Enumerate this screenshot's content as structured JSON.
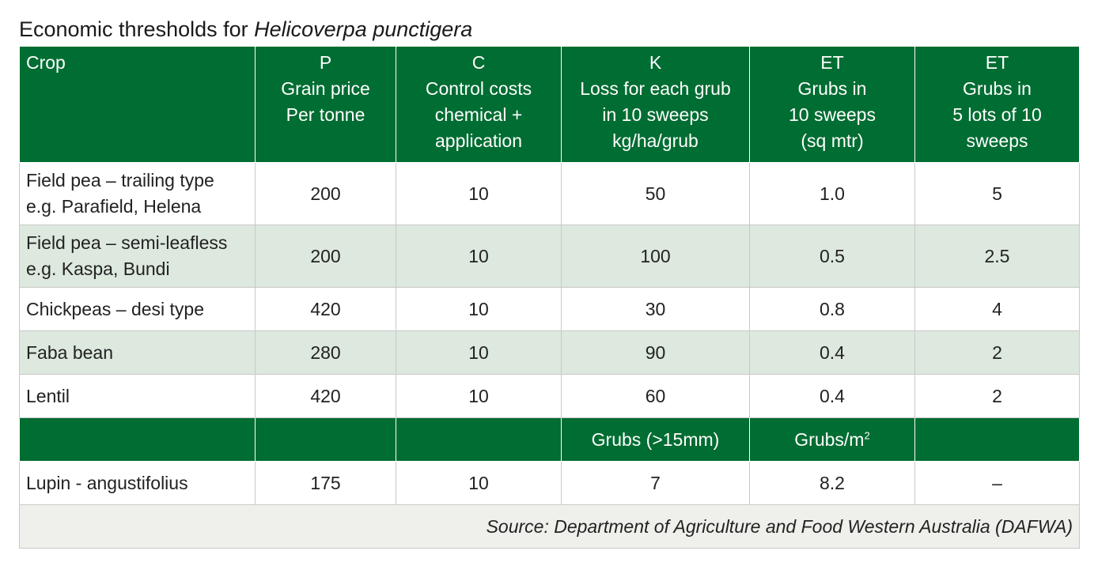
{
  "title": {
    "prefix": "Economic thresholds for ",
    "species": "Helicoverpa punctigera"
  },
  "headers": [
    {
      "lines": [
        "Crop"
      ]
    },
    {
      "lines": [
        "P",
        "Grain price",
        "Per tonne"
      ]
    },
    {
      "lines": [
        "C",
        "Control costs",
        "chemical +",
        "application"
      ]
    },
    {
      "lines": [
        "K",
        "Loss for each grub",
        "in 10 sweeps",
        "kg/ha/grub"
      ]
    },
    {
      "lines": [
        "ET",
        "Grubs in",
        "10 sweeps",
        "(sq mtr)"
      ]
    },
    {
      "lines": [
        "ET",
        "Grubs in",
        "5 lots of 10",
        "sweeps"
      ]
    }
  ],
  "rows": [
    {
      "crop": [
        "Field pea – trailing type",
        "e.g. Parafield, Helena"
      ],
      "p": "200",
      "c": "10",
      "k": "50",
      "et1": "1.0",
      "et2": "5"
    },
    {
      "crop": [
        "Field pea – semi-leafless",
        "e.g. Kaspa, Bundi"
      ],
      "p": "200",
      "c": "10",
      "k": "100",
      "et1": "0.5",
      "et2": "2.5"
    },
    {
      "crop": [
        "Chickpeas – desi type"
      ],
      "p": "420",
      "c": "10",
      "k": "30",
      "et1": "0.8",
      "et2": "4"
    },
    {
      "crop": [
        "Faba bean"
      ],
      "p": "280",
      "c": "10",
      "k": "90",
      "et1": "0.4",
      "et2": "2"
    },
    {
      "crop": [
        "Lentil"
      ],
      "p": "420",
      "c": "10",
      "k": "60",
      "et1": "0.4",
      "et2": "2"
    }
  ],
  "subheader": {
    "k": "Grubs (>15mm)",
    "et1_base": "Grubs/m",
    "et1_sup": "2"
  },
  "lupin": {
    "crop": "Lupin - angustifolius",
    "p": "175",
    "c": "10",
    "k": "7",
    "et1": "8.2",
    "et2": "–"
  },
  "source": "Source: Department of Agriculture and Food Western Australia (DAFWA)",
  "colors": {
    "header_green": "#006d32",
    "row_alt": "#dde8de",
    "source_bg": "#efefeb"
  }
}
